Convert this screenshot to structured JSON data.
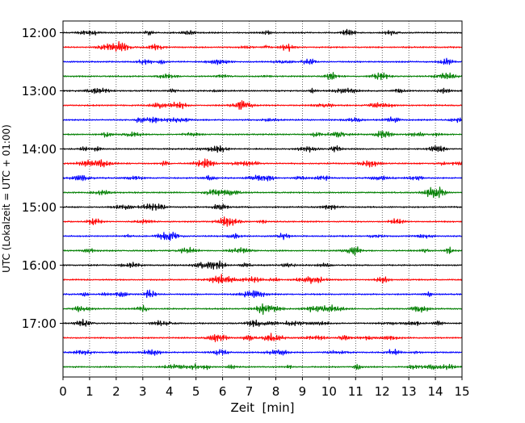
{
  "chart_data": {
    "type": "line",
    "title": "",
    "xlabel": "Zeit  [min]",
    "ylabel": "UTC (Lokalzeit = UTC + 01:00)",
    "xlim": [
      0,
      15
    ],
    "x_ticks": [
      0,
      1,
      2,
      3,
      4,
      5,
      6,
      7,
      8,
      9,
      10,
      11,
      12,
      13,
      14,
      15
    ],
    "y_ticks": [
      "12:00",
      "13:00",
      "14:00",
      "15:00",
      "16:00",
      "17:00"
    ],
    "grid": "vertical dotted lines at each minute",
    "legend": "none",
    "trace_interval_minutes": 15,
    "trace_colors": [
      "#000000",
      "#ff0000",
      "#0000ff",
      "#007f00"
    ],
    "series": [
      {
        "start": "12:00",
        "color": "#000000"
      },
      {
        "start": "12:15",
        "color": "#ff0000"
      },
      {
        "start": "12:30",
        "color": "#0000ff"
      },
      {
        "start": "12:45",
        "color": "#007f00"
      },
      {
        "start": "13:00",
        "color": "#000000"
      },
      {
        "start": "13:15",
        "color": "#ff0000"
      },
      {
        "start": "13:30",
        "color": "#0000ff"
      },
      {
        "start": "13:45",
        "color": "#007f00"
      },
      {
        "start": "14:00",
        "color": "#000000"
      },
      {
        "start": "14:15",
        "color": "#ff0000"
      },
      {
        "start": "14:30",
        "color": "#0000ff"
      },
      {
        "start": "14:45",
        "color": "#007f00"
      },
      {
        "start": "15:00",
        "color": "#000000"
      },
      {
        "start": "15:15",
        "color": "#ff0000"
      },
      {
        "start": "15:30",
        "color": "#0000ff"
      },
      {
        "start": "15:45",
        "color": "#007f00"
      },
      {
        "start": "16:00",
        "color": "#000000"
      },
      {
        "start": "16:15",
        "color": "#ff0000"
      },
      {
        "start": "16:30",
        "color": "#0000ff"
      },
      {
        "start": "16:45",
        "color": "#007f00"
      },
      {
        "start": "17:00",
        "color": "#000000"
      },
      {
        "start": "17:15",
        "color": "#ff0000"
      },
      {
        "start": "17:30",
        "color": "#0000ff"
      },
      {
        "start": "17:45",
        "color": "#007f00"
      }
    ]
  }
}
